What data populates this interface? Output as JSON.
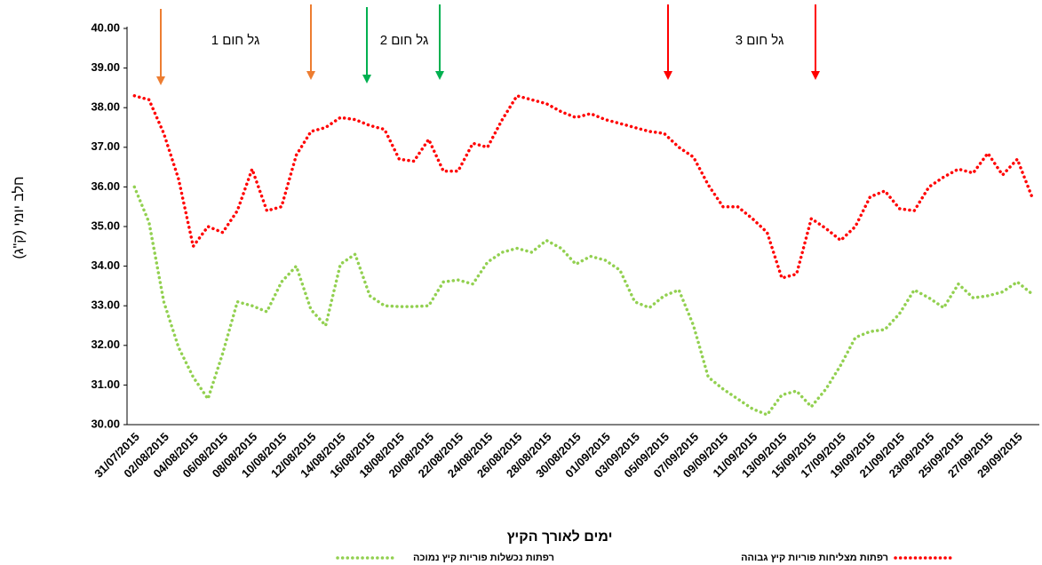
{
  "chart_data": {
    "type": "line",
    "y_label": "חלב יומי (ק\"ג)",
    "x_label": "ימים לאורך הקיץ",
    "annotations": [
      "גל חום 1",
      "גל חום 2",
      "גל חום 3"
    ],
    "categories": [
      "31/07/2015",
      null,
      "02/08/2015",
      null,
      "04/08/2015",
      null,
      "06/08/2015",
      null,
      "08/08/2015",
      null,
      "10/08/2015",
      null,
      "12/08/2015",
      null,
      "14/08/2015",
      null,
      "16/08/2015",
      null,
      "18/08/2015",
      null,
      "20/08/2015",
      null,
      "22/08/2015",
      null,
      "24/08/2015",
      null,
      "26/08/2015",
      null,
      "28/08/2015",
      null,
      "30/08/2015",
      null,
      "01/09/2015",
      null,
      "03/09/2015",
      null,
      "05/09/2015",
      null,
      "07/09/2015",
      null,
      "09/09/2015",
      null,
      "11/09/2015",
      null,
      "13/09/2015",
      null,
      "15/09/2015",
      null,
      "17/09/2015",
      null,
      "19/09/2015",
      null,
      "21/09/2015",
      null,
      "23/09/2015",
      null,
      "25/09/2015",
      null,
      "27/09/2015",
      null,
      "29/09/2015",
      null
    ],
    "series": [
      {
        "name": "רפתות מצליחות פוריות קיץ גבוהה",
        "color": "#ff0000",
        "values": [
          38.3,
          38.2,
          37.35,
          36.2,
          34.5,
          35.0,
          34.85,
          35.4,
          36.45,
          35.4,
          35.5,
          36.8,
          37.4,
          37.5,
          37.75,
          37.7,
          37.55,
          37.45,
          36.7,
          36.65,
          37.2,
          36.4,
          36.4,
          37.1,
          37.0,
          37.7,
          38.3,
          38.2,
          38.1,
          37.9,
          37.75,
          37.85,
          37.7,
          37.6,
          37.5,
          37.4,
          37.35,
          37.0,
          36.75,
          36.05,
          35.5,
          35.5,
          35.2,
          34.85,
          33.7,
          33.8,
          35.2,
          34.95,
          34.65,
          35.0,
          35.75,
          35.9,
          35.45,
          35.4,
          36.0,
          36.25,
          36.45,
          36.35,
          36.85,
          36.3,
          36.7,
          35.75
        ]
      },
      {
        "name": "רפתות נכשלות פוריות קיץ נמוכה",
        "color": "#92d050",
        "values": [
          36.0,
          35.1,
          33.1,
          31.95,
          31.2,
          30.65,
          31.8,
          33.1,
          33.0,
          32.85,
          33.6,
          34.0,
          32.9,
          32.5,
          34.05,
          34.3,
          33.25,
          33.0,
          32.98,
          32.98,
          33.0,
          33.6,
          33.65,
          33.55,
          34.1,
          34.35,
          34.45,
          34.35,
          34.65,
          34.45,
          34.05,
          34.25,
          34.15,
          33.9,
          33.1,
          32.95,
          33.25,
          33.4,
          32.5,
          31.2,
          30.9,
          30.65,
          30.4,
          30.25,
          30.75,
          30.85,
          30.45,
          30.9,
          31.5,
          32.2,
          32.35,
          32.4,
          32.8,
          33.4,
          33.2,
          32.95,
          33.55,
          33.2,
          33.25,
          33.35,
          33.6,
          33.3
        ]
      }
    ],
    "ylim": [
      30,
      40
    ],
    "yticks": [
      {
        "value": 30,
        "label": "30.00"
      },
      {
        "value": 31,
        "label": "31.00"
      },
      {
        "value": 32,
        "label": "32.00"
      },
      {
        "value": 33,
        "label": "33.00"
      },
      {
        "value": 34,
        "label": "34.00"
      },
      {
        "value": 35,
        "label": "35.00"
      },
      {
        "value": 36,
        "label": "36.00"
      },
      {
        "value": 37,
        "label": "37.00"
      },
      {
        "value": 38,
        "label": "38.00"
      },
      {
        "value": 39,
        "label": "39.00"
      },
      {
        "value": 40,
        "label": "40.00"
      }
    ],
    "grid": false
  }
}
